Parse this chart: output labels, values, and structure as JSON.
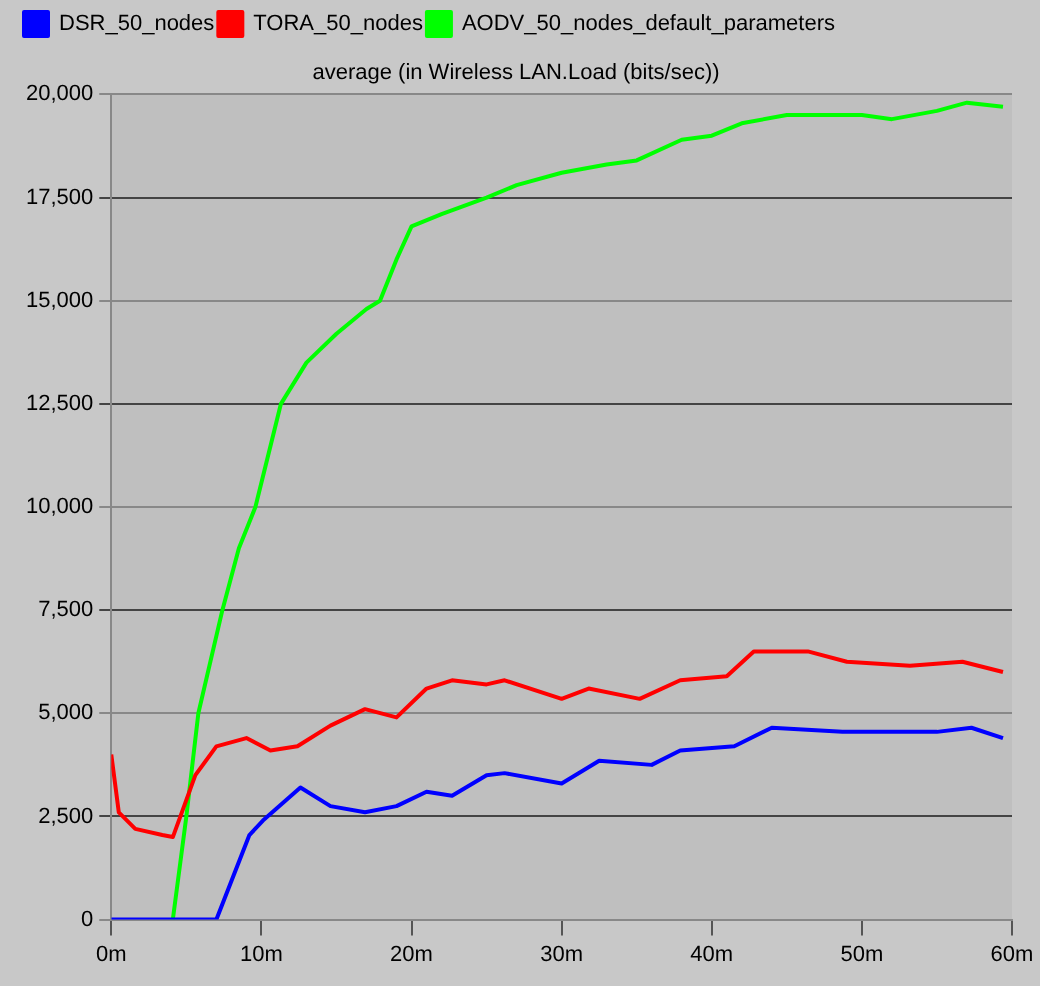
{
  "chart_data": {
    "type": "line",
    "title": "average (in Wireless LAN.Load (bits/sec))",
    "xlim": [
      0,
      60
    ],
    "xticks": [
      {
        "value": 0,
        "label": "0m"
      },
      {
        "value": 10,
        "label": "10m"
      },
      {
        "value": 20,
        "label": "20m"
      },
      {
        "value": 30,
        "label": "30m"
      },
      {
        "value": 40,
        "label": "40m"
      },
      {
        "value": 50,
        "label": "50m"
      },
      {
        "value": 60,
        "label": "60m"
      }
    ],
    "ylim": [
      0,
      20000
    ],
    "yticks": [
      {
        "value": 0,
        "label": "0"
      },
      {
        "value": 2500,
        "label": "2,500"
      },
      {
        "value": 5000,
        "label": "5,000"
      },
      {
        "value": 7500,
        "label": "7,500"
      },
      {
        "value": 10000,
        "label": "10,000"
      },
      {
        "value": 12500,
        "label": "12,500"
      },
      {
        "value": 15000,
        "label": "15,000"
      },
      {
        "value": 17500,
        "label": "17,500"
      },
      {
        "value": 20000,
        "label": "20,000"
      }
    ],
    "grid": "y",
    "legend": "top left",
    "marker": "none",
    "line_style": "solid",
    "series": [
      {
        "name": "DSR_50_nodes",
        "color": "#0000ff",
        "x": [
          0,
          7,
          9.2,
          10.1,
          12.6,
          14.6,
          16.9,
          19,
          21,
          22.7,
          25,
          26.2,
          30,
          32.5,
          36,
          37.9,
          41.5,
          44,
          48.7,
          55,
          57.3,
          59.4
        ],
        "values": [
          0,
          0,
          2050,
          2400,
          3200,
          2750,
          2600,
          2750,
          3100,
          3000,
          3500,
          3550,
          3300,
          3850,
          3750,
          4100,
          4200,
          4650,
          4550,
          4550,
          4650,
          4400
        ]
      },
      {
        "name": "TORA_50_nodes",
        "color": "#ff0000",
        "x": [
          0,
          0.5,
          1.6,
          3.4,
          4.1,
          4.7,
          5.6,
          7,
          9,
          10.6,
          12.4,
          14.6,
          16.9,
          19,
          21,
          22.7,
          25,
          26.2,
          30,
          31.8,
          35.2,
          37.9,
          41,
          42.8,
          46.4,
          49,
          53.2,
          56.7,
          59.4
        ],
        "values": [
          4000,
          2600,
          2200,
          2050,
          2000,
          2600,
          3500,
          4200,
          4400,
          4100,
          4200,
          4700,
          5100,
          4900,
          5600,
          5800,
          5700,
          5800,
          5350,
          5600,
          5350,
          5800,
          5900,
          6500,
          6500,
          6250,
          6150,
          6250,
          6000
        ]
      },
      {
        "name": "AODV_50_nodes_default_parameters",
        "color": "#00ff00",
        "x": [
          4.1,
          5,
          5.8,
          7.4,
          8.5,
          9.6,
          11.3,
          13,
          15,
          17,
          17.9,
          19,
          20,
          22,
          25,
          27,
          30,
          33,
          35,
          38,
          40,
          42,
          45,
          50,
          52,
          55,
          57,
          59.4
        ],
        "values": [
          0,
          2500,
          5000,
          7500,
          9000,
          10000,
          12500,
          13500,
          14200,
          14800,
          15000,
          16000,
          16800,
          17100,
          17500,
          17800,
          18100,
          18300,
          18400,
          18900,
          19000,
          19300,
          19500,
          19500,
          19400,
          19600,
          19800,
          19700
        ]
      }
    ]
  }
}
